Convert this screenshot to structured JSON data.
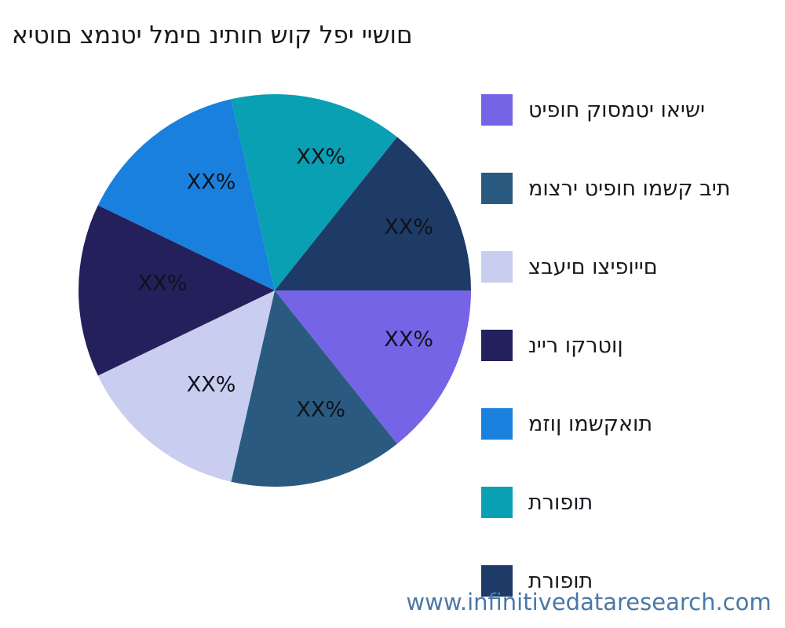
{
  "title": {
    "text": "איטום צמנטי למים ניתוח שוק לפי יישום",
    "color": "#17181d"
  },
  "watermark": {
    "text": "www.infinitivedataresearch.com",
    "color": "#4a78a6"
  },
  "chart_data": {
    "type": "pie",
    "title": "איטום צמנטי למים ניתוח שוק לפי יישום",
    "legend_position": "right",
    "start_angle_deg": 0,
    "direction": "clockwise",
    "values_displayed_as": "XX%",
    "text_rendering_note": "Hebrew strings are drawn character-LTR (reversed) in the source image",
    "series": [
      {
        "name": "טיפוח קוסמטי ואישי",
        "color": "#7565E6",
        "label": "XX%",
        "value_pct_estimated": 14.29
      },
      {
        "name": "מוצרי טיפוח ומשק בית",
        "color": "#2B5A80",
        "label": "XX%",
        "value_pct_estimated": 14.29
      },
      {
        "name": "צבעים וציפויים",
        "color": "#C9CDEF",
        "label": "XX%",
        "value_pct_estimated": 14.29
      },
      {
        "name": "נייר וקרטון",
        "color": "#23205C",
        "label": "XX%",
        "value_pct_estimated": 14.29
      },
      {
        "name": "מזון ומשקאות",
        "color": "#1A80DE",
        "label": "XX%",
        "value_pct_estimated": 14.29
      },
      {
        "name": "תרופות",
        "color": "#09A0B4",
        "label": "XX%",
        "value_pct_estimated": 14.29
      },
      {
        "name": "תרופות",
        "color": "#1E3B68",
        "label": "XX%",
        "value_pct_estimated": 14.29
      }
    ]
  }
}
